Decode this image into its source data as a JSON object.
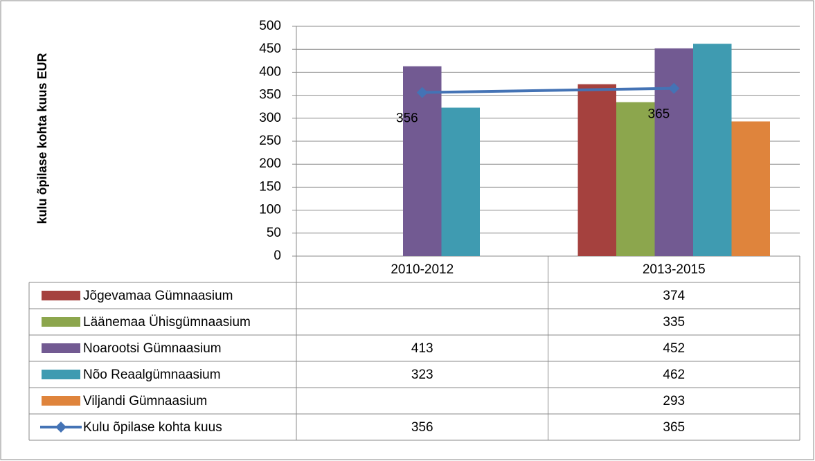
{
  "chart_data": {
    "type": "bar",
    "y_label": "kulu õpilase kohta kuus EUR",
    "categories": [
      "2010-2012",
      "2013-2015"
    ],
    "series": [
      {
        "name": "Jõgevamaa Gümnaasium",
        "color": "#a5413e",
        "values": [
          null,
          374
        ]
      },
      {
        "name": "Läänemaa Ühisgümnaasium",
        "color": "#8ca64d",
        "values": [
          null,
          335
        ]
      },
      {
        "name": "Noarootsi Gümnaasium",
        "color": "#725a92",
        "values": [
          413,
          452
        ]
      },
      {
        "name": "Nõo Reaalgümnaasium",
        "color": "#3f9bb1",
        "values": [
          323,
          462
        ]
      },
      {
        "name": "Viljandi Gümnaasium",
        "color": "#df843c",
        "values": [
          null,
          293
        ]
      },
      {
        "name": "Kulu õpilase kohta kuus",
        "color": "#4473b5",
        "type": "line",
        "values": [
          356,
          365
        ]
      }
    ],
    "ylim": [
      0,
      500
    ],
    "yticks": [
      0,
      50,
      100,
      150,
      200,
      250,
      300,
      350,
      400,
      450,
      500
    ],
    "grid": true
  }
}
